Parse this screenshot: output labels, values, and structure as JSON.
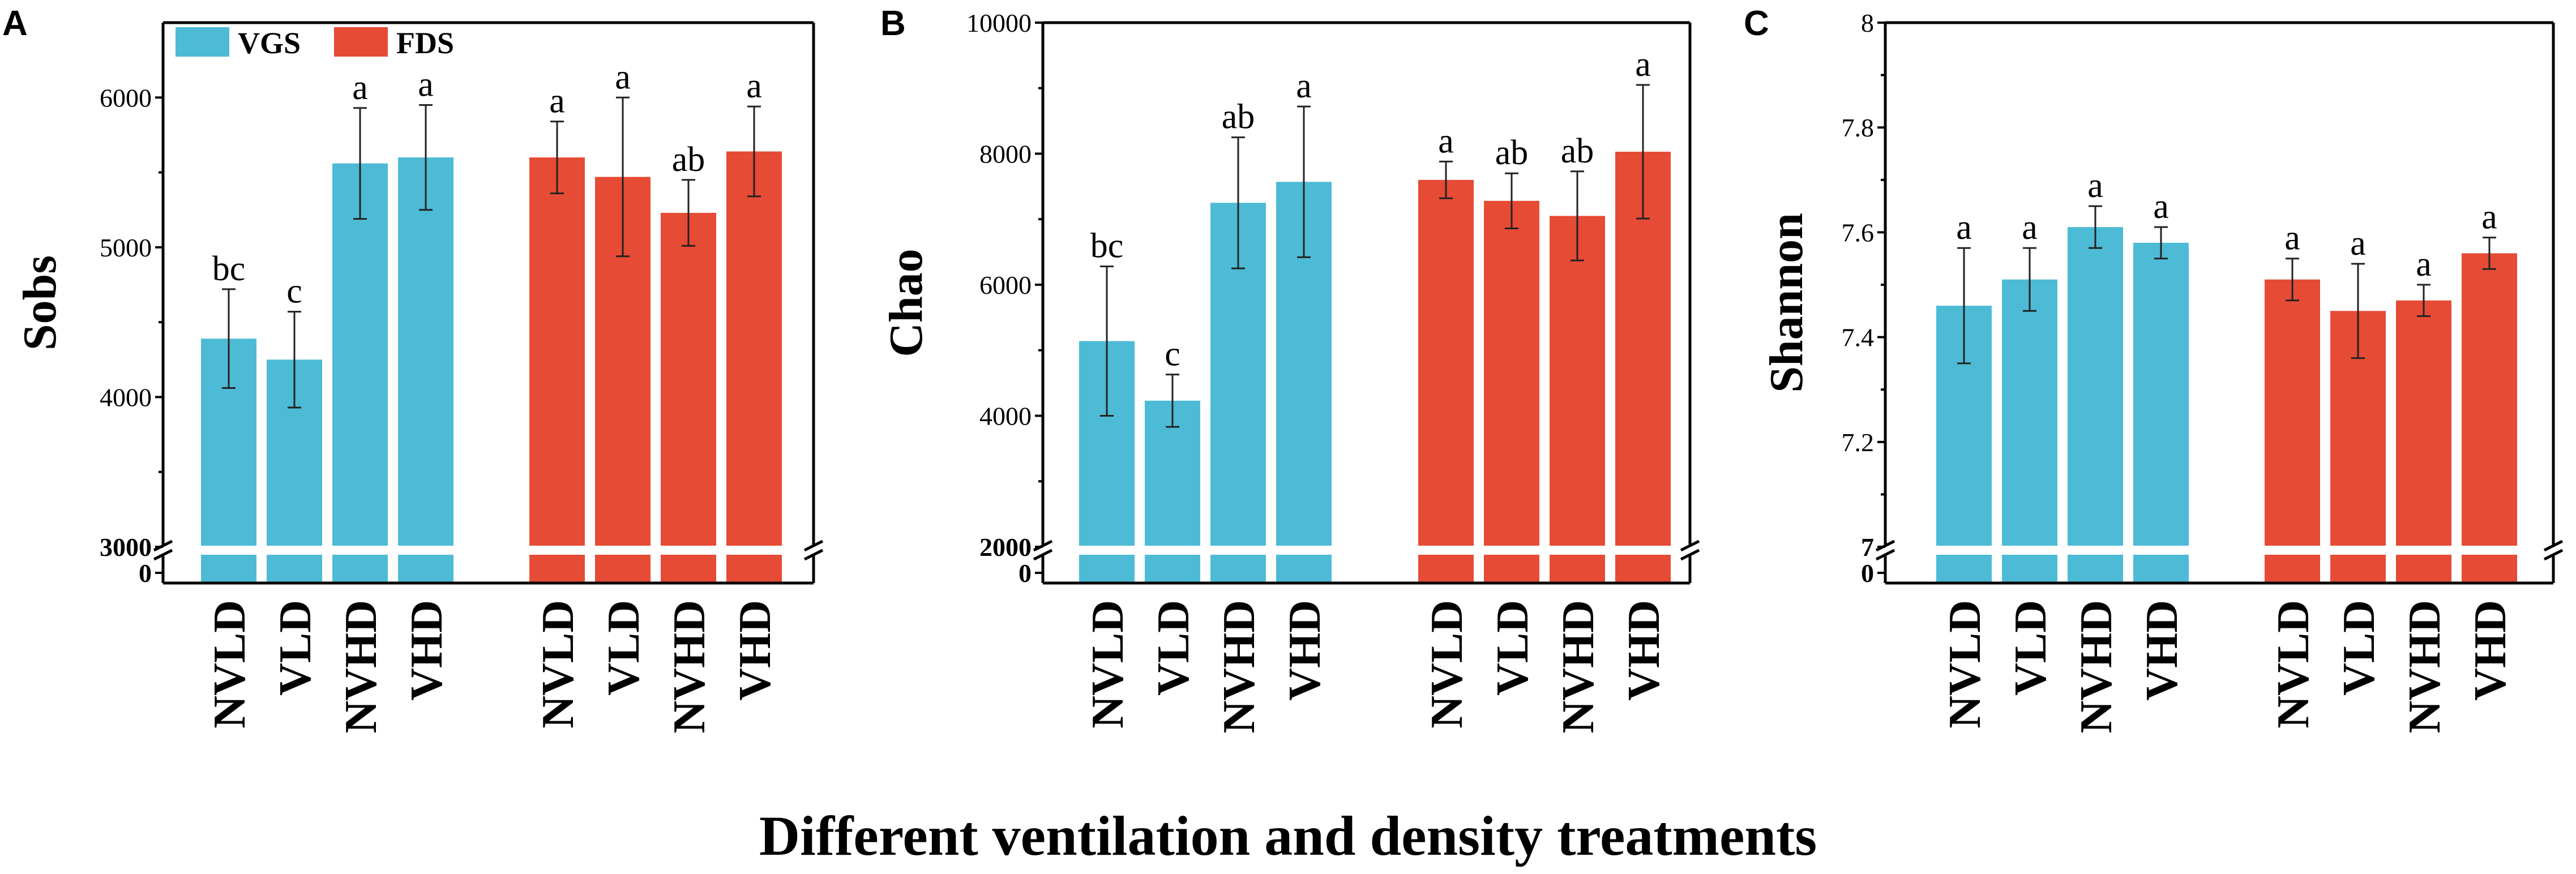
{
  "figure": {
    "x_title": "Different ventilation and density treatments",
    "colors": {
      "VGS": "#4dbbd5",
      "FDS": "#e64b35"
    }
  },
  "chart_data": [
    {
      "type": "bar",
      "panel": "A",
      "ylabel": "Sobs",
      "categories": [
        "NVLD",
        "VLD",
        "NVHD",
        "VHD"
      ],
      "groups": [
        "VGS",
        "FDS"
      ],
      "legend": [
        "VGS",
        "FDS"
      ],
      "legend_position": "top-left",
      "ylim": [
        3000,
        6500
      ],
      "broken_axis_bottom": "0",
      "yticks": [
        3000,
        4000,
        5000,
        6000
      ],
      "series": [
        {
          "name": "VGS",
          "values": [
            4390,
            4250,
            5560,
            5600
          ],
          "errors": [
            330,
            320,
            370,
            350
          ],
          "letters": [
            "bc",
            "c",
            "a",
            "a"
          ]
        },
        {
          "name": "FDS",
          "values": [
            5600,
            5470,
            5230,
            5640
          ],
          "errors": [
            240,
            530,
            220,
            300
          ],
          "letters": [
            "a",
            "a",
            "ab",
            "a"
          ]
        }
      ]
    },
    {
      "type": "bar",
      "panel": "B",
      "ylabel": "Chao",
      "categories": [
        "NVLD",
        "VLD",
        "NVHD",
        "VHD"
      ],
      "groups": [
        "VGS",
        "FDS"
      ],
      "ylim": [
        2000,
        10000
      ],
      "broken_axis_bottom": "0",
      "yticks": [
        2000,
        4000,
        6000,
        8000,
        10000
      ],
      "series": [
        {
          "name": "VGS",
          "values": [
            5140,
            4230,
            7250,
            7570
          ],
          "errors": [
            1140,
            400,
            1000,
            1150
          ],
          "letters": [
            "bc",
            "c",
            "ab",
            "a"
          ]
        },
        {
          "name": "FDS",
          "values": [
            7600,
            7280,
            7050,
            8030
          ],
          "errors": [
            280,
            420,
            680,
            1020
          ],
          "letters": [
            "a",
            "ab",
            "ab",
            "a"
          ]
        }
      ]
    },
    {
      "type": "bar",
      "panel": "C",
      "ylabel": "Shannon",
      "categories": [
        "NVLD",
        "VLD",
        "NVHD",
        "VHD"
      ],
      "groups": [
        "VGS",
        "FDS"
      ],
      "ylim": [
        7.0,
        8.0
      ],
      "broken_axis_bottom": "0",
      "yticks": [
        7.0,
        7.2,
        7.4,
        7.6,
        7.8,
        8.0
      ],
      "series": [
        {
          "name": "VGS",
          "values": [
            7.46,
            7.51,
            7.61,
            7.58
          ],
          "errors": [
            0.11,
            0.06,
            0.04,
            0.03
          ],
          "letters": [
            "a",
            "a",
            "a",
            "a"
          ]
        },
        {
          "name": "FDS",
          "values": [
            7.51,
            7.45,
            7.47,
            7.56
          ],
          "errors": [
            0.04,
            0.09,
            0.03,
            0.03
          ],
          "letters": [
            "a",
            "a",
            "a",
            "a"
          ]
        }
      ]
    }
  ]
}
